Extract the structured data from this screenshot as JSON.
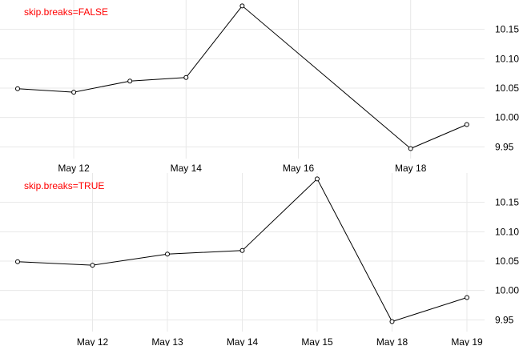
{
  "chart_data": [
    {
      "type": "line",
      "title": "skip.breaks=FALSE",
      "title_color": "#ff0000",
      "line_color": "#000000",
      "marker": "open-circle",
      "grid": true,
      "y_axis_side": "right",
      "x": [
        "2023-05-11",
        "2023-05-12",
        "2023-05-13",
        "2023-05-14",
        "2023-05-15",
        "2023-05-18",
        "2023-05-19"
      ],
      "values": [
        10.049,
        10.043,
        10.062,
        10.068,
        10.19,
        9.947,
        9.988
      ],
      "xlim": [
        "2023-05-11",
        "2023-05-19"
      ],
      "ylim": [
        9.93,
        10.2
      ],
      "x_ticks": [
        {
          "value": "2023-05-12",
          "label": "May 12"
        },
        {
          "value": "2023-05-14",
          "label": "May 14"
        },
        {
          "value": "2023-05-16",
          "label": "May 16"
        },
        {
          "value": "2023-05-18",
          "label": "May 18"
        }
      ],
      "y_ticks": [
        9.95,
        10.0,
        10.05,
        10.1,
        10.15
      ],
      "y_tick_labels": [
        "9.95",
        "10.00",
        "10.05",
        "10.10",
        "10.15"
      ]
    },
    {
      "type": "line",
      "title": "skip.breaks=TRUE",
      "title_color": "#ff0000",
      "line_color": "#000000",
      "marker": "open-circle",
      "grid": true,
      "y_axis_side": "right",
      "x_scale": "skip-breaks",
      "x": [
        "May 11",
        "May 12",
        "May 13",
        "May 14",
        "May 15",
        "May 18",
        "May 19"
      ],
      "values": [
        10.049,
        10.043,
        10.062,
        10.068,
        10.19,
        9.947,
        9.988
      ],
      "ylim": [
        9.93,
        10.2
      ],
      "x_tick_labels": [
        "",
        "May 12",
        "May 13",
        "May 14",
        "May 15",
        "May 18",
        "May 19"
      ],
      "y_ticks": [
        9.95,
        10.0,
        10.05,
        10.1,
        10.15
      ],
      "y_tick_labels": [
        "9.95",
        "10.00",
        "10.05",
        "10.10",
        "10.15"
      ]
    }
  ]
}
